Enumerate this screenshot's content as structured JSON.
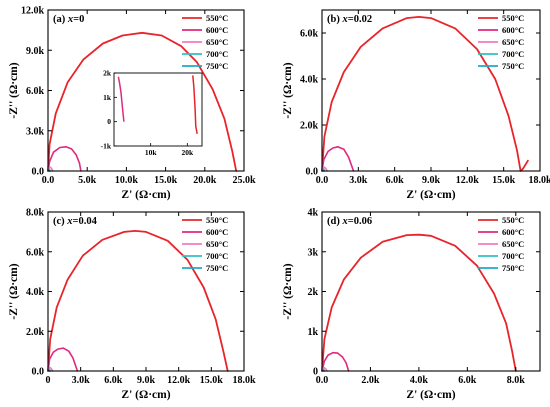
{
  "colors": {
    "550": "#e8242a",
    "600": "#e0287f",
    "650": "#f27bc0",
    "700": "#2ec2c2",
    "750": "#1fa9c8"
  },
  "chart_data": [
    {
      "type": "line",
      "panel_label": "(a) ",
      "panel_var": "x",
      "panel_value": "=0",
      "xlabel": "Z' (Ω·cm)",
      "ylabel": "-Z'' (Ω·cm)",
      "xlim": [
        0,
        25000
      ],
      "ylim": [
        0,
        12000
      ],
      "xticks": [
        0,
        5000,
        10000,
        15000,
        20000,
        25000
      ],
      "xtick_labels": [
        "0.0",
        "5.0k",
        "10.0k",
        "15.0k",
        "20.0k",
        "25.0k"
      ],
      "yticks": [
        0,
        3000,
        6000,
        9000,
        12000
      ],
      "ytick_labels": [
        "0.0",
        "3.0k",
        "6.0k",
        "9.0k",
        "12.0k"
      ],
      "series": [
        {
          "name": "550°C",
          "color_key": "550",
          "x": [
            0,
            200,
            1000,
            2500,
            4500,
            7000,
            9500,
            12000,
            14500,
            17000,
            19000,
            21000,
            22500,
            23500,
            24000
          ],
          "y": [
            0,
            2000,
            4300,
            6600,
            8300,
            9500,
            10100,
            10300,
            10100,
            9300,
            8100,
            6100,
            3900,
            1500,
            0
          ]
        },
        {
          "name": "600°C",
          "color_key": "600",
          "x": [
            0,
            200,
            700,
            1500,
            2300,
            3000,
            3600,
            4000,
            4200
          ],
          "y": [
            0,
            700,
            1400,
            1750,
            1800,
            1650,
            1200,
            600,
            0
          ]
        },
        {
          "name": "650°C",
          "color_key": "650",
          "x": [
            0,
            100,
            250,
            450,
            600
          ],
          "y": [
            0,
            200,
            280,
            200,
            0
          ]
        },
        {
          "name": "700°C",
          "color_key": "700",
          "x": [
            0,
            60,
            140,
            220,
            280
          ],
          "y": [
            0,
            90,
            120,
            80,
            0
          ]
        },
        {
          "name": "750°C",
          "color_key": "750",
          "x": [
            0,
            40,
            100,
            150,
            190
          ],
          "y": [
            0,
            50,
            70,
            40,
            0
          ]
        }
      ],
      "inset": {
        "xlim": [
          0,
          24000
        ],
        "ylim": [
          -1000,
          2000
        ],
        "xticks": [
          10000,
          20000
        ],
        "xtick_labels": [
          "10k",
          "20k"
        ],
        "yticks": [
          -1000,
          0,
          1000,
          2000
        ],
        "ytick_labels": [
          "-1k",
          "0",
          "1k",
          "2k"
        ],
        "series": [
          {
            "color_key": "600",
            "x": [
              1200,
              1500,
              1900,
              2300,
              2700
            ],
            "y": [
              1850,
              1600,
              1200,
              600,
              0
            ]
          },
          {
            "color_key": "550",
            "x": [
              21500,
              21800,
              22100,
              22300,
              22700
            ],
            "y": [
              1900,
              1400,
              600,
              -200,
              -500
            ]
          }
        ]
      }
    },
    {
      "type": "line",
      "panel_label": "(b) ",
      "panel_var": "x",
      "panel_value": "=0.02",
      "xlabel": "Z' (Ω·cm)",
      "ylabel": "-Z'' (Ω·cm)",
      "xlim": [
        0,
        18000
      ],
      "ylim": [
        0,
        7000
      ],
      "xticks": [
        0,
        3000,
        6000,
        9000,
        12000,
        15000,
        18000
      ],
      "xtick_labels": [
        "0.0",
        "3.0k",
        "6.0k",
        "9.0k",
        "12.0k",
        "15.0k",
        "18.0k"
      ],
      "yticks": [
        0,
        2000,
        4000,
        6000
      ],
      "ytick_labels": [
        "0.0",
        "2.0k",
        "4.0k",
        "6.0k"
      ],
      "series": [
        {
          "name": "550°C",
          "color_key": "550",
          "x": [
            0,
            200,
            800,
            1800,
            3200,
            5000,
            7000,
            8000,
            9000,
            11000,
            12800,
            14300,
            15400,
            16100,
            16400,
            16600,
            17000
          ],
          "y": [
            0,
            1500,
            3000,
            4300,
            5400,
            6200,
            6650,
            6700,
            6650,
            6200,
            5300,
            4000,
            2400,
            900,
            0,
            100,
            450
          ]
        },
        {
          "name": "600°C",
          "color_key": "600",
          "x": [
            0,
            150,
            500,
            900,
            1300,
            1800,
            2200,
            2600
          ],
          "y": [
            0,
            500,
            850,
            1000,
            1050,
            950,
            600,
            0
          ]
        },
        {
          "name": "650°C",
          "color_key": "650",
          "x": [
            0,
            80,
            200,
            320,
            420
          ],
          "y": [
            0,
            120,
            160,
            110,
            0
          ]
        },
        {
          "name": "700°C",
          "color_key": "700",
          "x": [
            0,
            50,
            110,
            170,
            210
          ],
          "y": [
            0,
            60,
            80,
            50,
            0
          ]
        },
        {
          "name": "750°C",
          "color_key": "750",
          "x": [
            0,
            30,
            80,
            120,
            150
          ],
          "y": [
            0,
            30,
            45,
            25,
            0
          ]
        }
      ]
    },
    {
      "type": "line",
      "panel_label": "(c) ",
      "panel_var": "x",
      "panel_value": "=0.04",
      "xlabel": "Z' (Ω·cm)",
      "ylabel": "-Z'' (Ω·cm)",
      "xlim": [
        0,
        18000
      ],
      "ylim": [
        0,
        8000
      ],
      "xticks": [
        0,
        3000,
        6000,
        9000,
        12000,
        15000,
        18000
      ],
      "xtick_labels": [
        "0",
        "3.0k",
        "6.0k",
        "9.0k",
        "12.0k",
        "15.0k",
        "18.0k"
      ],
      "yticks": [
        0,
        2000,
        4000,
        6000,
        8000
      ],
      "ytick_labels": [
        "0.0",
        "2.0k",
        "4.0k",
        "6.0k",
        "8.0k"
      ],
      "series": [
        {
          "name": "550°C",
          "color_key": "550",
          "x": [
            0,
            200,
            800,
            1800,
            3200,
            5000,
            7000,
            8000,
            9000,
            11000,
            12800,
            14300,
            15400,
            16100,
            16500
          ],
          "y": [
            0,
            1600,
            3200,
            4600,
            5800,
            6600,
            7000,
            7050,
            7000,
            6550,
            5600,
            4200,
            2600,
            1000,
            0
          ]
        },
        {
          "name": "600°C",
          "color_key": "600",
          "x": [
            0,
            150,
            500,
            900,
            1400,
            1900,
            2300,
            2700
          ],
          "y": [
            0,
            600,
            950,
            1100,
            1150,
            1000,
            650,
            0
          ]
        },
        {
          "name": "650°C",
          "color_key": "650",
          "x": [
            0,
            80,
            200,
            320,
            420
          ],
          "y": [
            0,
            130,
            170,
            110,
            0
          ]
        },
        {
          "name": "700°C",
          "color_key": "700",
          "x": [
            0,
            50,
            110,
            170,
            210
          ],
          "y": [
            0,
            60,
            80,
            50,
            0
          ]
        },
        {
          "name": "750°C",
          "color_key": "750",
          "x": [
            0,
            30,
            80,
            120,
            150
          ],
          "y": [
            0,
            30,
            45,
            25,
            0
          ]
        }
      ]
    },
    {
      "type": "line",
      "panel_label": "(d) ",
      "panel_var": "x",
      "panel_value": "=0.06",
      "xlabel": "Z' (Ω·cm)",
      "ylabel": "-Z'' (Ω·cm)",
      "xlim": [
        0,
        9000
      ],
      "ylim": [
        0,
        4000
      ],
      "xticks": [
        0,
        2000,
        4000,
        6000,
        8000
      ],
      "xtick_labels": [
        "0.0",
        "2.0k",
        "4.0k",
        "6.0k",
        "8.0k"
      ],
      "yticks": [
        0,
        1000,
        2000,
        3000,
        4000
      ],
      "ytick_labels": [
        "0",
        "1k",
        "2k",
        "3k",
        "4k"
      ],
      "series": [
        {
          "name": "550°C",
          "color_key": "550",
          "x": [
            0,
            100,
            400,
            900,
            1600,
            2500,
            3500,
            4000,
            4500,
            5500,
            6400,
            7100,
            7600,
            7850,
            8000
          ],
          "y": [
            0,
            800,
            1600,
            2300,
            2850,
            3250,
            3420,
            3430,
            3400,
            3150,
            2650,
            1950,
            1200,
            500,
            0
          ]
        },
        {
          "name": "600°C",
          "color_key": "600",
          "x": [
            0,
            100,
            250,
            450,
            650,
            850,
            1000,
            1100
          ],
          "y": [
            0,
            250,
            400,
            460,
            450,
            350,
            200,
            0
          ]
        },
        {
          "name": "650°C",
          "color_key": "650",
          "x": [
            0,
            40,
            100,
            160,
            210
          ],
          "y": [
            0,
            60,
            80,
            50,
            0
          ]
        },
        {
          "name": "700°C",
          "color_key": "700",
          "x": [
            0,
            25,
            55,
            85,
            110
          ],
          "y": [
            0,
            30,
            40,
            25,
            0
          ]
        },
        {
          "name": "750°C",
          "color_key": "750",
          "x": [
            0,
            15,
            40,
            60,
            75
          ],
          "y": [
            0,
            15,
            22,
            12,
            0
          ]
        }
      ]
    }
  ]
}
